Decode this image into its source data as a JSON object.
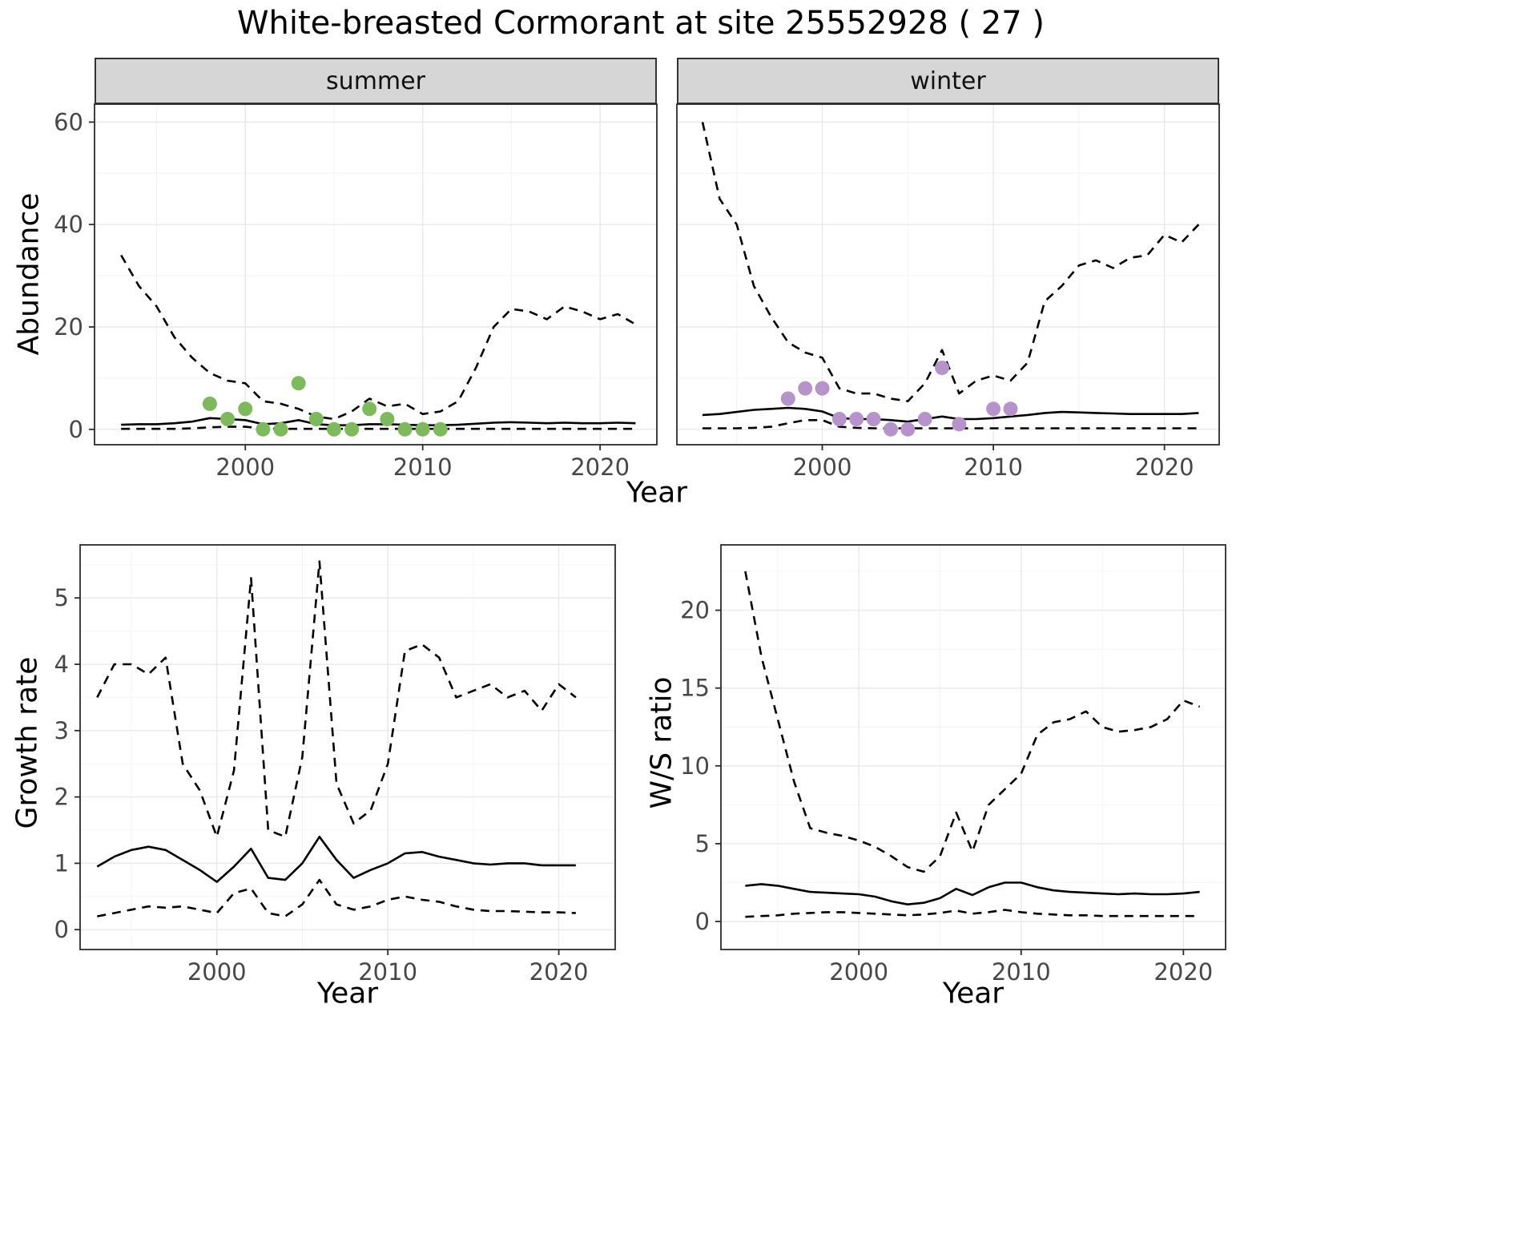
{
  "title": "White-breasted Cormorant at site 25552928 ( 27 )",
  "top_row": {
    "ylabel": "Abundance",
    "xlabel": "Year",
    "facets": [
      "summer",
      "winter"
    ]
  },
  "bottom_row": {
    "left": {
      "ylabel": "Growth rate",
      "xlabel": "Year"
    },
    "right": {
      "ylabel": "W/S ratio",
      "xlabel": "Year"
    }
  },
  "colors": {
    "summer_points": "#7cba5c",
    "winter_points": "#b694cb",
    "line": "#000000",
    "grid_major": "#e9e9e9",
    "grid_minor": "#f4f4f4",
    "strip_bg": "#d6d6d6"
  },
  "chart_data": [
    {
      "id": "abundance-summer",
      "type": "line",
      "facet": "summer",
      "title": "Abundance (summer facet)",
      "xlabel": "Year",
      "ylabel": "Abundance",
      "x": [
        1993,
        1994,
        1995,
        1996,
        1997,
        1998,
        1999,
        2000,
        2001,
        2002,
        2003,
        2004,
        2005,
        2006,
        2007,
        2008,
        2009,
        2010,
        2011,
        2012,
        2013,
        2014,
        2015,
        2016,
        2017,
        2018,
        2019,
        2020,
        2021,
        2022
      ],
      "series": [
        {
          "name": "upper_95ci",
          "style": "dashed",
          "values": [
            34,
            28,
            24,
            18,
            14,
            11,
            9.5,
            9,
            5.5,
            5,
            4,
            2.5,
            2,
            3.5,
            6,
            4.5,
            5,
            3,
            3.5,
            5.5,
            12,
            20,
            23.5,
            23,
            21.5,
            24,
            23,
            21.5,
            22.5,
            20.5
          ]
        },
        {
          "name": "median",
          "style": "solid",
          "values": [
            0.9,
            1,
            1,
            1.2,
            1.5,
            2.2,
            2,
            1.8,
            1,
            1.2,
            1.8,
            1,
            0.8,
            0.8,
            1,
            1,
            0.9,
            0.8,
            0.8,
            0.9,
            1.1,
            1.3,
            1.4,
            1.3,
            1.2,
            1.3,
            1.2,
            1.2,
            1.3,
            1.2
          ]
        },
        {
          "name": "lower_95ci",
          "style": "dashed",
          "values": [
            0.1,
            0.1,
            0.1,
            0.1,
            0.2,
            0.4,
            0.5,
            0.5,
            0.2,
            0.1,
            0.1,
            0.1,
            0.1,
            0.1,
            0.1,
            0.1,
            0.1,
            0.1,
            0.1,
            0.1,
            0.1,
            0.1,
            0.1,
            0.1,
            0.1,
            0.1,
            0.1,
            0.1,
            0.1,
            0.1
          ]
        }
      ],
      "points": {
        "label": "observed counts",
        "color": "#7cba5c",
        "x": [
          1998,
          1999,
          2000,
          2001,
          2002,
          2003,
          2004,
          2005,
          2006,
          2007,
          2008,
          2009,
          2010,
          2011
        ],
        "y": [
          5,
          2,
          4,
          0,
          0,
          9,
          2,
          0,
          0,
          4,
          2,
          0,
          0,
          0
        ]
      },
      "xlim": [
        1991.5,
        2023.2
      ],
      "ylim": [
        -3,
        63.5
      ],
      "xticks": [
        2000,
        2010,
        2020
      ],
      "yticks": [
        0,
        20,
        40,
        60
      ],
      "xticks_minor": [
        1995,
        2005,
        2015
      ],
      "yticks_minor": [
        10,
        30,
        50
      ],
      "show_yaxis": true,
      "grid": true
    },
    {
      "id": "abundance-winter",
      "type": "line",
      "facet": "winter",
      "title": "Abundance (winter facet)",
      "xlabel": "Year",
      "ylabel": "Abundance",
      "x": [
        1993,
        1994,
        1995,
        1996,
        1997,
        1998,
        1999,
        2000,
        2001,
        2002,
        2003,
        2004,
        2005,
        2006,
        2007,
        2008,
        2009,
        2010,
        2011,
        2012,
        2013,
        2014,
        2015,
        2016,
        2017,
        2018,
        2019,
        2020,
        2021,
        2022
      ],
      "series": [
        {
          "name": "upper_95ci",
          "style": "dashed",
          "values": [
            60,
            45,
            40,
            28,
            22,
            17,
            15,
            14,
            8,
            7,
            7,
            6,
            5.5,
            9,
            15.5,
            7,
            9.5,
            10.5,
            9.5,
            13,
            25,
            28,
            32,
            33,
            31.5,
            33.5,
            34,
            38,
            36.5,
            40
          ]
        },
        {
          "name": "median",
          "style": "solid",
          "values": [
            2.8,
            3,
            3.4,
            3.8,
            4,
            4.2,
            4,
            3.5,
            2.2,
            2,
            2,
            1.8,
            1.5,
            2,
            2.5,
            2,
            2,
            2.2,
            2.5,
            2.8,
            3.2,
            3.4,
            3.3,
            3.2,
            3.1,
            3,
            3,
            3,
            3,
            3.2
          ]
        },
        {
          "name": "lower_95ci",
          "style": "dashed",
          "values": [
            0.2,
            0.2,
            0.2,
            0.3,
            0.5,
            1.2,
            1.8,
            1.8,
            0.5,
            0.3,
            0.2,
            0.2,
            0.2,
            0.2,
            0.2,
            0.2,
            0.2,
            0.2,
            0.2,
            0.2,
            0.2,
            0.2,
            0.2,
            0.2,
            0.2,
            0.2,
            0.2,
            0.2,
            0.2,
            0.2
          ]
        }
      ],
      "points": {
        "label": "observed counts",
        "color": "#b694cb",
        "x": [
          1998,
          1999,
          2000,
          2001,
          2002,
          2003,
          2004,
          2005,
          2006,
          2007,
          2008,
          2010,
          2011
        ],
        "y": [
          6,
          8,
          8,
          2,
          2,
          2,
          0,
          0,
          2,
          12,
          1,
          4,
          4
        ]
      },
      "xlim": [
        1991.5,
        2023.2
      ],
      "ylim": [
        -3,
        63.5
      ],
      "xticks": [
        2000,
        2010,
        2020
      ],
      "yticks": [
        0,
        20,
        40,
        60
      ],
      "xticks_minor": [
        1995,
        2005,
        2015
      ],
      "yticks_minor": [
        10,
        30,
        50
      ],
      "show_yaxis": false,
      "grid": true
    },
    {
      "id": "growth-rate",
      "type": "line",
      "title": "Growth rate",
      "xlabel": "Year",
      "ylabel": "Growth rate",
      "x": [
        1993,
        1994,
        1995,
        1996,
        1997,
        1998,
        1999,
        2000,
        2001,
        2002,
        2003,
        2004,
        2005,
        2006,
        2007,
        2008,
        2009,
        2010,
        2011,
        2012,
        2013,
        2014,
        2015,
        2016,
        2017,
        2018,
        2019,
        2020,
        2021
      ],
      "series": [
        {
          "name": "upper_95ci",
          "style": "dashed",
          "values": [
            3.5,
            4,
            4,
            3.85,
            4.1,
            2.5,
            2.1,
            1.4,
            2.4,
            5.3,
            1.5,
            1.4,
            2.6,
            5.55,
            2.2,
            1.6,
            1.8,
            2.5,
            4.2,
            4.3,
            4.1,
            3.5,
            3.6,
            3.7,
            3.5,
            3.6,
            3.3,
            3.7,
            3.5
          ]
        },
        {
          "name": "median",
          "style": "solid",
          "values": [
            0.95,
            1.1,
            1.2,
            1.25,
            1.2,
            1.05,
            0.9,
            0.72,
            0.95,
            1.22,
            0.78,
            0.75,
            1,
            1.4,
            1.05,
            0.78,
            0.9,
            1,
            1.15,
            1.17,
            1.1,
            1.05,
            1,
            0.98,
            1,
            1,
            0.97,
            0.97,
            0.97
          ]
        },
        {
          "name": "lower_95ci",
          "style": "dashed",
          "values": [
            0.2,
            0.25,
            0.3,
            0.35,
            0.33,
            0.35,
            0.3,
            0.25,
            0.55,
            0.62,
            0.25,
            0.2,
            0.38,
            0.75,
            0.38,
            0.3,
            0.35,
            0.45,
            0.5,
            0.45,
            0.42,
            0.35,
            0.3,
            0.28,
            0.28,
            0.27,
            0.26,
            0.26,
            0.25
          ]
        }
      ],
      "xlim": [
        1992,
        2023.3
      ],
      "ylim": [
        -0.3,
        5.8
      ],
      "xticks": [
        2000,
        2010,
        2020
      ],
      "yticks": [
        0,
        1,
        2,
        3,
        4,
        5
      ],
      "xticks_minor": [
        1995,
        2005,
        2015
      ],
      "yticks_minor": [
        0.5,
        1.5,
        2.5,
        3.5,
        4.5,
        5.5
      ],
      "show_yaxis": true,
      "grid": true
    },
    {
      "id": "ws-ratio",
      "type": "line",
      "title": "W/S ratio",
      "xlabel": "Year",
      "ylabel": "W/S ratio",
      "x": [
        1993,
        1994,
        1995,
        1996,
        1997,
        1998,
        1999,
        2000,
        2001,
        2002,
        2003,
        2004,
        2005,
        2006,
        2007,
        2008,
        2009,
        2010,
        2011,
        2012,
        2013,
        2014,
        2015,
        2016,
        2017,
        2018,
        2019,
        2020,
        2021
      ],
      "series": [
        {
          "name": "upper_95ci",
          "style": "dashed",
          "values": [
            22.5,
            17,
            13,
            9,
            6,
            5.7,
            5.5,
            5.2,
            4.8,
            4.2,
            3.5,
            3.2,
            4.2,
            7,
            4.5,
            7.5,
            8.5,
            9.5,
            12,
            12.8,
            13,
            13.5,
            12.5,
            12.2,
            12.3,
            12.5,
            13,
            14.2,
            13.8
          ]
        },
        {
          "name": "median",
          "style": "solid",
          "values": [
            2.3,
            2.4,
            2.3,
            2.1,
            1.9,
            1.85,
            1.8,
            1.75,
            1.6,
            1.3,
            1.1,
            1.2,
            1.5,
            2.1,
            1.7,
            2.2,
            2.5,
            2.5,
            2.2,
            2,
            1.9,
            1.85,
            1.8,
            1.75,
            1.8,
            1.75,
            1.75,
            1.8,
            1.9
          ]
        },
        {
          "name": "lower_95ci",
          "style": "dashed",
          "values": [
            0.3,
            0.35,
            0.4,
            0.5,
            0.55,
            0.6,
            0.6,
            0.55,
            0.5,
            0.45,
            0.4,
            0.45,
            0.55,
            0.7,
            0.5,
            0.6,
            0.75,
            0.6,
            0.5,
            0.45,
            0.4,
            0.4,
            0.35,
            0.35,
            0.35,
            0.35,
            0.35,
            0.35,
            0.35
          ]
        }
      ],
      "xlim": [
        1991.5,
        2022.6
      ],
      "ylim": [
        -1.8,
        24.2
      ],
      "xticks": [
        2000,
        2010,
        2020
      ],
      "yticks": [
        0,
        5,
        10,
        15,
        20
      ],
      "xticks_minor": [
        1995,
        2005,
        2015
      ],
      "yticks_minor": [
        2.5,
        7.5,
        12.5,
        17.5,
        22.5
      ],
      "show_yaxis": true,
      "grid": true
    }
  ]
}
